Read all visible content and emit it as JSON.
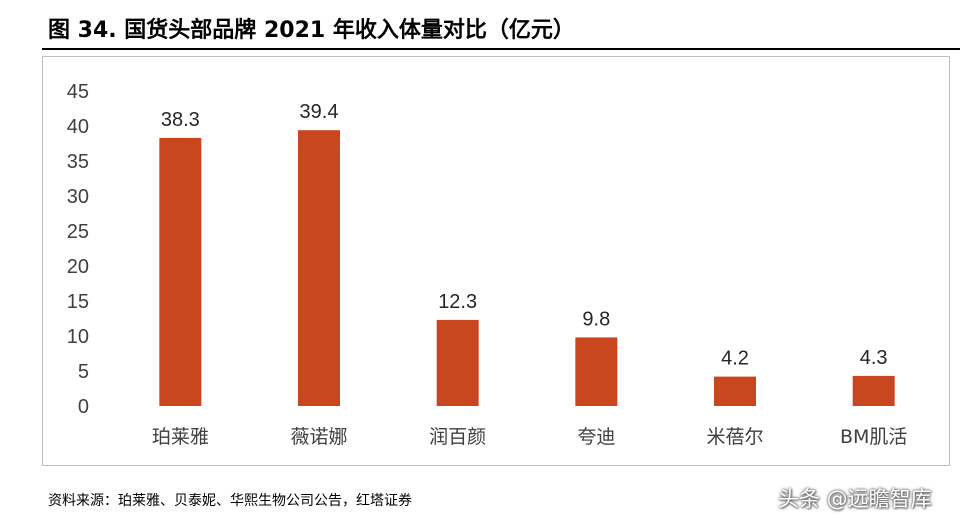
{
  "figure": {
    "title": "图 34. 国货头部品牌 2021 年收入体量对比（亿元）",
    "source": "资料来源：珀莱雅、贝泰妮、华熙生物公司公告，红塔证券",
    "watermark": "头条 @远瞻智库"
  },
  "colors": {
    "bar": "#c9471f",
    "axis_text": "#404040",
    "frame": "#bfbfbf"
  },
  "chart_data": {
    "type": "bar",
    "title": "",
    "xlabel": "",
    "ylabel": "",
    "categories": [
      "珀莱雅",
      "薇诺娜",
      "润百颜",
      "夸迪",
      "米蓓尔",
      "BM肌活"
    ],
    "values": [
      38.3,
      39.4,
      12.3,
      9.8,
      4.2,
      4.3
    ],
    "value_labels": [
      "38.3",
      "39.4",
      "12.3",
      "9.8",
      "4.2",
      "4.3"
    ],
    "ylim": [
      0,
      45
    ],
    "yticks": [
      "0",
      "5",
      "10",
      "15",
      "20",
      "25",
      "30",
      "35",
      "40",
      "45"
    ],
    "grid": false,
    "legend": "none"
  }
}
